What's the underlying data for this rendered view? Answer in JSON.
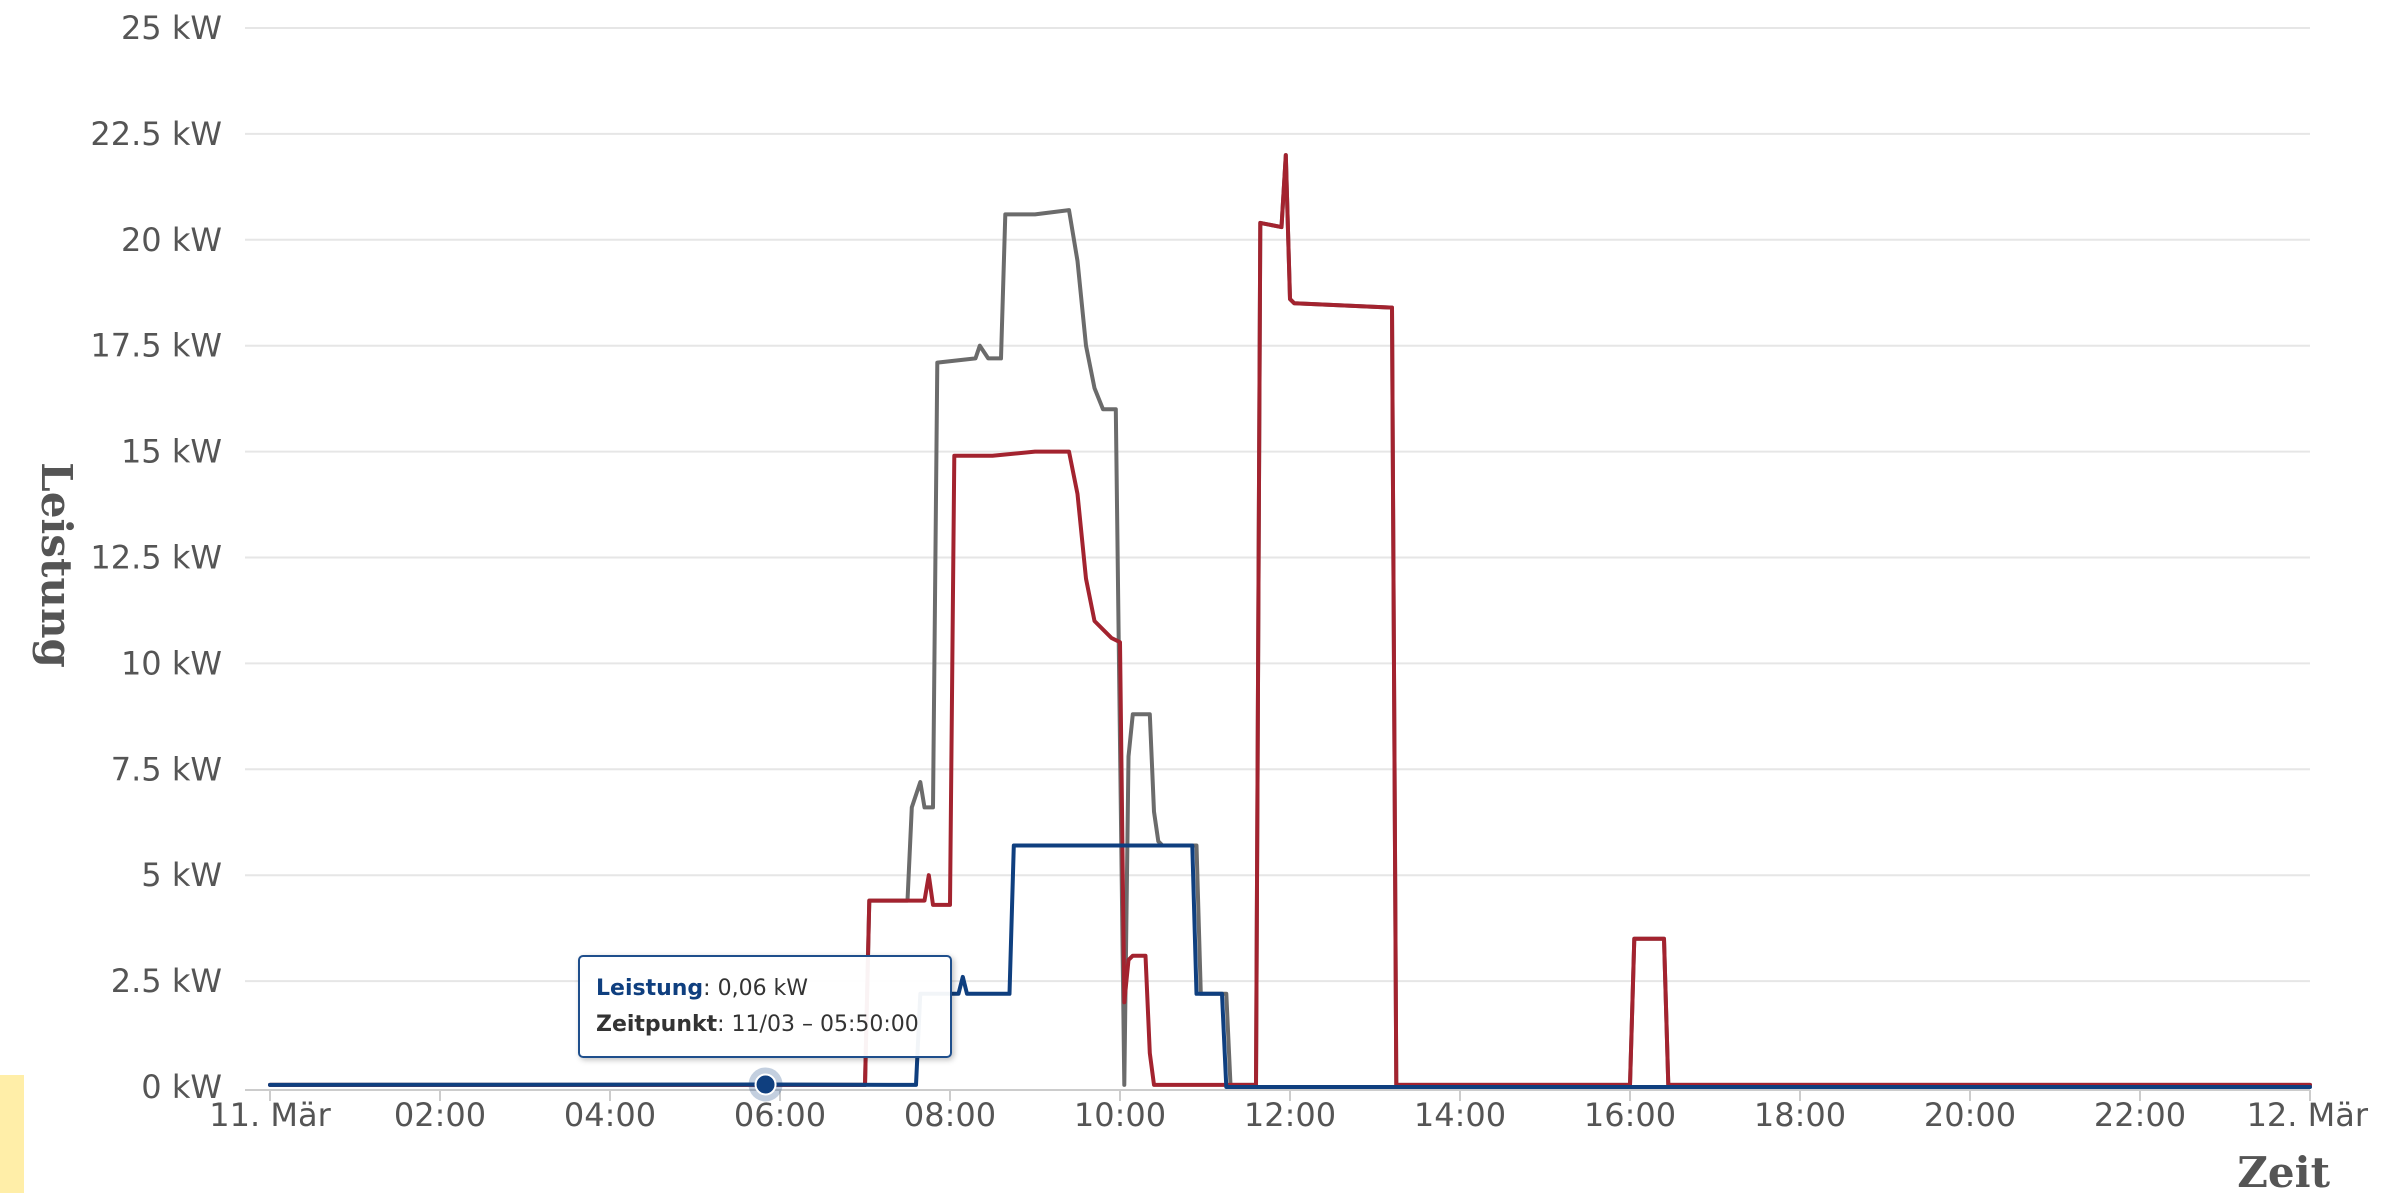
{
  "chart_data": {
    "type": "line",
    "title": "",
    "xlabel": "Zeit",
    "ylabel": "Leistung",
    "ylim": [
      0,
      25
    ],
    "y_ticks": [
      {
        "value": 0,
        "label": "0 kW"
      },
      {
        "value": 2.5,
        "label": "2.5 kW"
      },
      {
        "value": 5,
        "label": "5 kW"
      },
      {
        "value": 7.5,
        "label": "7.5 kW"
      },
      {
        "value": 10,
        "label": "10 kW"
      },
      {
        "value": 12.5,
        "label": "12.5 kW"
      },
      {
        "value": 15,
        "label": "15 kW"
      },
      {
        "value": 17.5,
        "label": "17.5 kW"
      },
      {
        "value": 20,
        "label": "20 kW"
      },
      {
        "value": 22.5,
        "label": "22.5 kW"
      },
      {
        "value": 25,
        "label": "25 kW"
      }
    ],
    "x_ticks": [
      {
        "value": 0,
        "label": "11. Mär"
      },
      {
        "value": 2,
        "label": "02:00"
      },
      {
        "value": 4,
        "label": "04:00"
      },
      {
        "value": 6,
        "label": "06:00"
      },
      {
        "value": 8,
        "label": "08:00"
      },
      {
        "value": 10,
        "label": "10:00"
      },
      {
        "value": 12,
        "label": "12:00"
      },
      {
        "value": 14,
        "label": "14:00"
      },
      {
        "value": 16,
        "label": "16:00"
      },
      {
        "value": 18,
        "label": "18:00"
      },
      {
        "value": 20,
        "label": "20:00"
      },
      {
        "value": 22,
        "label": "22:00"
      },
      {
        "value": 24,
        "label": "12. Mär"
      }
    ],
    "xlim": [
      0,
      24
    ],
    "grid": true,
    "series": [
      {
        "color": "#6b6b6b",
        "x": [
          0,
          7.0,
          7.05,
          7.5,
          7.55,
          7.65,
          7.7,
          7.8,
          7.85,
          8.3,
          8.35,
          8.45,
          8.6,
          8.65,
          9.0,
          9.4,
          9.5,
          9.6,
          9.7,
          9.8,
          9.95,
          10.05,
          10.1,
          10.15,
          10.35,
          10.4,
          10.45,
          10.5,
          10.9,
          10.95,
          11.05,
          11.25,
          11.3,
          11.6,
          11.65,
          11.9,
          11.95,
          12.0,
          12.05,
          13.2,
          13.25,
          13.3,
          16.0,
          16.05,
          16.4,
          16.45,
          20.0,
          24.0
        ],
        "y": [
          0.05,
          0.05,
          4.4,
          4.4,
          6.6,
          7.2,
          6.6,
          6.6,
          17.1,
          17.2,
          17.5,
          17.2,
          17.2,
          20.6,
          20.6,
          20.7,
          19.5,
          17.5,
          16.5,
          16.0,
          16.0,
          0.05,
          7.8,
          8.8,
          8.8,
          6.5,
          5.8,
          5.7,
          5.7,
          2.2,
          2.2,
          2.2,
          0.05,
          0.05,
          20.4,
          20.3,
          22.0,
          18.6,
          18.5,
          18.4,
          0.05,
          0.05,
          0.05,
          3.5,
          3.5,
          0.05,
          0.05,
          0.05
        ]
      },
      {
        "color": "#a3232f",
        "x": [
          0,
          7.0,
          7.05,
          7.7,
          7.75,
          7.8,
          7.85,
          7.9,
          8.0,
          8.05,
          8.5,
          9.0,
          9.4,
          9.5,
          9.6,
          9.7,
          9.9,
          10.0,
          10.05,
          10.1,
          10.15,
          10.3,
          10.35,
          10.4,
          10.45,
          11.0,
          11.6,
          11.65,
          11.9,
          11.95,
          12.0,
          12.05,
          13.2,
          13.25,
          16.0,
          16.05,
          16.4,
          16.45,
          24.0
        ],
        "y": [
          0.05,
          0.05,
          4.4,
          4.4,
          5.0,
          4.3,
          4.3,
          4.3,
          4.3,
          14.9,
          14.9,
          15.0,
          15.0,
          14.0,
          12.0,
          11.0,
          10.6,
          10.5,
          2.0,
          3.0,
          3.1,
          3.1,
          0.8,
          0.05,
          0.05,
          0.05,
          0.05,
          20.4,
          20.3,
          22.0,
          18.6,
          18.5,
          18.4,
          0.05,
          0.05,
          3.5,
          3.5,
          0.05,
          0.05
        ]
      },
      {
        "color": "#0f3f7f",
        "x": [
          0,
          5.83,
          7.6,
          7.65,
          8.1,
          8.15,
          8.2,
          8.25,
          8.7,
          8.75,
          9.0,
          10.0,
          10.5,
          10.85,
          10.9,
          11.2,
          11.25,
          12.0,
          16.0,
          16.5,
          24.0
        ],
        "y": [
          0.05,
          0.06,
          0.05,
          2.2,
          2.2,
          2.6,
          2.2,
          2.2,
          2.2,
          5.7,
          5.7,
          5.7,
          5.7,
          5.7,
          2.2,
          2.2,
          0.0,
          0.0,
          0.0,
          0.0,
          0.0
        ]
      }
    ],
    "highlight_point": {
      "x": 5.83,
      "y": 0.06
    }
  },
  "tooltip": {
    "label1": "Leistung",
    "value1": ": 0,06 kW",
    "label2": "Zeitpunkt",
    "value2": ": 11/03 – 05:50:00",
    "label1_color": "#0f3f7f"
  }
}
